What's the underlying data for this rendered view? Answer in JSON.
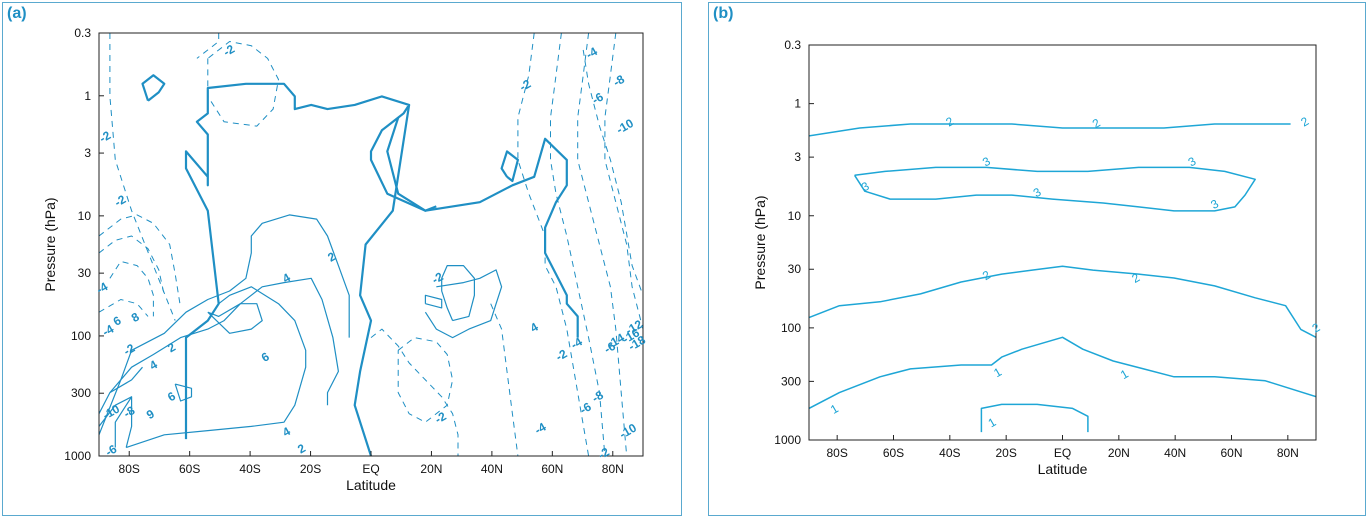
{
  "chart_data": [
    {
      "type": "contour",
      "panel_label": "(a)",
      "xlabel": "Latitude",
      "ylabel": "Pressure  (hPa)",
      "x_ticks": [
        "80S",
        "60S",
        "40S",
        "20S",
        "EQ",
        "20N",
        "40N",
        "60N",
        "80N"
      ],
      "x_tick_values": [
        -80,
        -60,
        -40,
        -20,
        0,
        20,
        40,
        60,
        80
      ],
      "xlim": [
        -90,
        90
      ],
      "y_ticks": [
        "0.3",
        "1",
        "3",
        "10",
        "30",
        "100",
        "300",
        "1000"
      ],
      "y_tick_values": [
        0.3,
        1,
        3,
        10,
        30,
        100,
        300,
        1000
      ],
      "ylim": [
        0.3,
        1000
      ],
      "y_scale": "log-reversed",
      "contour_labels": [
        {
          "text": "-2",
          "lat": -47,
          "p": 0.42
        },
        {
          "text": "-2",
          "lat": -88,
          "p": 2.2
        },
        {
          "text": "-2",
          "lat": -83,
          "p": 7.5
        },
        {
          "text": "-4",
          "lat": -89,
          "p": 40
        },
        {
          "text": "6",
          "lat": -84,
          "p": 75
        },
        {
          "text": "8",
          "lat": -78,
          "p": 70
        },
        {
          "text": "-4",
          "lat": -87,
          "p": 90
        },
        {
          "text": "-2",
          "lat": -80,
          "p": 130
        },
        {
          "text": "2",
          "lat": -66,
          "p": 125
        },
        {
          "text": "4",
          "lat": -72,
          "p": 175
        },
        {
          "text": "6",
          "lat": -66,
          "p": 320
        },
        {
          "text": "-10",
          "lat": -86,
          "p": 430
        },
        {
          "text": "-8",
          "lat": -80,
          "p": 430
        },
        {
          "text": "9",
          "lat": -73,
          "p": 450
        },
        {
          "text": "-6",
          "lat": -86,
          "p": 900
        },
        {
          "text": "6",
          "lat": -35,
          "p": 150
        },
        {
          "text": "4",
          "lat": -28,
          "p": 33
        },
        {
          "text": "2",
          "lat": -13,
          "p": 22
        },
        {
          "text": "4",
          "lat": -28,
          "p": 630
        },
        {
          "text": "2",
          "lat": -23,
          "p": 870
        },
        {
          "text": "-2",
          "lat": 22,
          "p": 33
        },
        {
          "text": "-2",
          "lat": 23,
          "p": 480
        },
        {
          "text": "4",
          "lat": 54,
          "p": 85
        },
        {
          "text": "-4",
          "lat": 56,
          "p": 590
        },
        {
          "text": "-2",
          "lat": 63,
          "p": 145
        },
        {
          "text": "-4",
          "lat": 68,
          "p": 115
        },
        {
          "text": "-6",
          "lat": 79,
          "p": 125
        },
        {
          "text": "-8",
          "lat": 75,
          "p": 320
        },
        {
          "text": "-6",
          "lat": 71,
          "p": 400
        },
        {
          "text": "-10",
          "lat": 85,
          "p": 620
        },
        {
          "text": "-2",
          "lat": 77,
          "p": 950
        },
        {
          "text": "-2",
          "lat": 51,
          "p": 0.82
        },
        {
          "text": "-4",
          "lat": 73,
          "p": 0.44
        },
        {
          "text": "-6",
          "lat": 75,
          "p": 1.05
        },
        {
          "text": "-8",
          "lat": 82,
          "p": 0.75
        },
        {
          "text": "-10",
          "lat": 84,
          "p": 1.8
        },
        {
          "text": "-12",
          "lat": 87,
          "p": 85
        },
        {
          "text": "-14",
          "lat": 81,
          "p": 110
        },
        {
          "text": "-16",
          "lat": 86,
          "p": 100
        },
        {
          "text": "-18",
          "lat": 88,
          "p": 115
        }
      ]
    },
    {
      "type": "contour",
      "panel_label": "(b)",
      "xlabel": "Latitude",
      "ylabel": "Pressure (hPa)",
      "x_ticks": [
        "80S",
        "60S",
        "40S",
        "20S",
        "EQ",
        "20N",
        "40N",
        "60N",
        "80N"
      ],
      "x_tick_values": [
        -80,
        -60,
        -40,
        -20,
        0,
        20,
        40,
        60,
        80
      ],
      "xlim": [
        -90,
        90
      ],
      "y_ticks": [
        "0.3",
        "1",
        "3",
        "10",
        "30",
        "100",
        "300",
        "1000"
      ],
      "y_tick_values": [
        0.3,
        1,
        3,
        10,
        30,
        100,
        300,
        1000
      ],
      "ylim": [
        0.3,
        1000
      ],
      "y_scale": "log-reversed",
      "contour_labels": [
        {
          "text": "2",
          "lat": -40,
          "p": 1.45
        },
        {
          "text": "2",
          "lat": 12,
          "p": 1.5
        },
        {
          "text": "2",
          "lat": 86,
          "p": 1.45
        },
        {
          "text": "3",
          "lat": -27,
          "p": 3.3
        },
        {
          "text": "3",
          "lat": 46,
          "p": 3.3
        },
        {
          "text": "3",
          "lat": -70,
          "p": 5.5
        },
        {
          "text": "3",
          "lat": -9,
          "p": 6.2
        },
        {
          "text": "3",
          "lat": 54,
          "p": 7.9
        },
        {
          "text": "2",
          "lat": -27,
          "p": 34
        },
        {
          "text": "2",
          "lat": 26,
          "p": 36
        },
        {
          "text": "2",
          "lat": 90,
          "p": 100
        },
        {
          "text": "1",
          "lat": -23,
          "p": 250
        },
        {
          "text": "1",
          "lat": 22,
          "p": 260
        },
        {
          "text": "1",
          "lat": -81,
          "p": 530
        },
        {
          "text": "1",
          "lat": -25,
          "p": 700
        }
      ]
    }
  ]
}
